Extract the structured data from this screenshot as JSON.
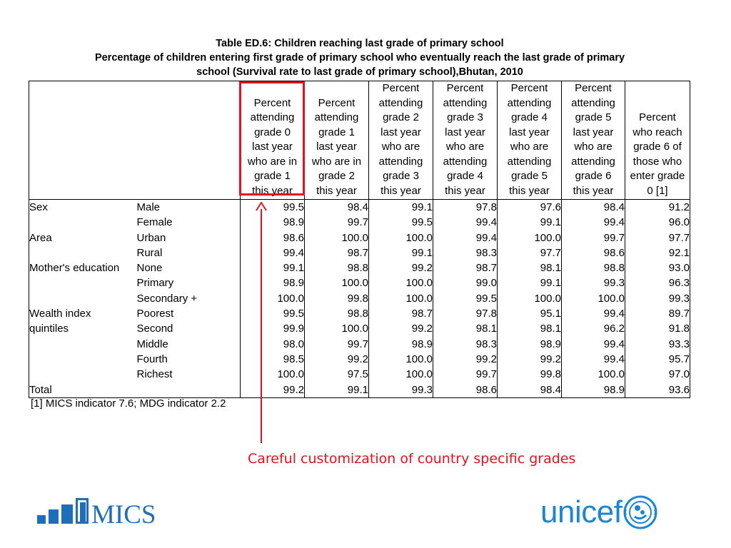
{
  "title": {
    "line1": "Table ED.6: Children reaching last grade of primary school",
    "line2": "Percentage of children entering first grade of primary school who eventually reach the last grade of primary",
    "line3": "school (Survival rate to last grade of primary school),Bhutan, 2010"
  },
  "table": {
    "headers": [
      [
        "Percent",
        "attending",
        "grade 0",
        "last year",
        "who are in",
        "grade 1",
        "this year"
      ],
      [
        "Percent",
        "attending",
        "grade 1",
        "last year",
        "who are in",
        "grade 2",
        "this year"
      ],
      [
        "Percent",
        "attending",
        "grade 2",
        "last year",
        "who are",
        "attending",
        "grade 3",
        "this year"
      ],
      [
        "Percent",
        "attending",
        "grade 3",
        "last year",
        "who are",
        "attending",
        "grade 4",
        "this year"
      ],
      [
        "Percent",
        "attending",
        "grade 4",
        "last year",
        "who are",
        "attending",
        "grade 5",
        "this year"
      ],
      [
        "Percent",
        "attending",
        "grade 5",
        "last year",
        "who are",
        "attending",
        "grade 6",
        "this year"
      ],
      [
        "Percent",
        "who reach",
        "grade 6 of",
        "those who",
        "enter grade",
        "0 [1]"
      ]
    ],
    "rows": [
      {
        "category": "Sex",
        "sub": "Male",
        "values": [
          "99.5",
          "98.4",
          "99.1",
          "97.8",
          "97.6",
          "98.4",
          "91.2"
        ]
      },
      {
        "category": "",
        "sub": "Female",
        "values": [
          "98.9",
          "99.7",
          "99.5",
          "99.4",
          "99.1",
          "99.4",
          "96.0"
        ]
      },
      {
        "category": "Area",
        "sub": "Urban",
        "values": [
          "98.6",
          "100.0",
          "100.0",
          "99.4",
          "100.0",
          "99.7",
          "97.7"
        ]
      },
      {
        "category": "",
        "sub": "Rural",
        "values": [
          "99.4",
          "98.7",
          "99.1",
          "98.3",
          "97.7",
          "98.6",
          "92.1"
        ]
      },
      {
        "category": "Mother's education",
        "sub": "None",
        "values": [
          "99.1",
          "98.8",
          "99.2",
          "98.7",
          "98.1",
          "98.8",
          "93.0"
        ]
      },
      {
        "category": "",
        "sub": "Primary",
        "values": [
          "98.9",
          "100.0",
          "100.0",
          "99.0",
          "99.1",
          "99.3",
          "96.3"
        ]
      },
      {
        "category": "",
        "sub": "Secondary +",
        "values": [
          "100.0",
          "99.8",
          "100.0",
          "99.5",
          "100.0",
          "100.0",
          "99.3"
        ]
      },
      {
        "category": "Wealth index",
        "sub": "Poorest",
        "values": [
          "99.5",
          "98.8",
          "98.7",
          "97.8",
          "95.1",
          "99.4",
          "89.7"
        ]
      },
      {
        "category": "quintiles",
        "sub": "Second",
        "values": [
          "99.9",
          "100.0",
          "99.2",
          "98.1",
          "98.1",
          "96.2",
          "91.8"
        ]
      },
      {
        "category": "",
        "sub": "Middle",
        "values": [
          "98.0",
          "99.7",
          "98.9",
          "98.3",
          "98.9",
          "99.4",
          "93.3"
        ]
      },
      {
        "category": "",
        "sub": "Fourth",
        "values": [
          "98.5",
          "99.2",
          "100.0",
          "99.2",
          "99.2",
          "99.4",
          "95.7"
        ]
      },
      {
        "category": "",
        "sub": "Richest",
        "values": [
          "100.0",
          "97.5",
          "100.0",
          "99.7",
          "99.8",
          "100.0",
          "97.0"
        ]
      },
      {
        "category": "Total",
        "sub": "",
        "values": [
          "99.2",
          "99.1",
          "99.3",
          "98.6",
          "98.4",
          "98.9",
          "93.6"
        ]
      }
    ]
  },
  "footnote": "[1] MICS indicator 7.6; MDG indicator 2.2",
  "callout": "Careful customization of country specific grades",
  "logos": {
    "mics": "MICS",
    "unicef": "unicef"
  },
  "colors": {
    "highlight": "#e8101e",
    "mics_blue": "#1e6fb8",
    "unicef_blue": "#1c87d1"
  },
  "icons": {
    "mics_logo_bars": "bar-chart-icon",
    "unicef_emblem": "unicef-emblem-icon"
  }
}
